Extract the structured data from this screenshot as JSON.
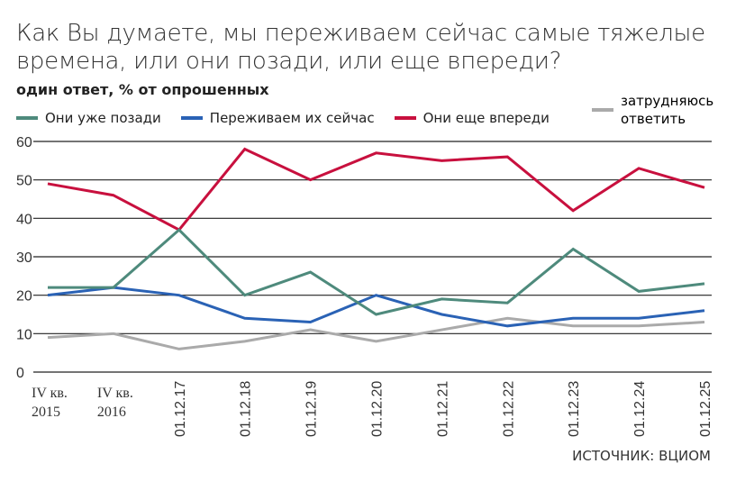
{
  "title": "Как Вы думаете, мы переживаем сейчас самые тяжелые времена, или они позади, или еще впереди?",
  "subtitle": "один ответ, % от опрошенных",
  "source": "ИСТОЧНИК: ВЦИОМ",
  "chart_data": {
    "type": "line",
    "title": "Как Вы думаете, мы переживаем сейчас самые тяжелые времена, или они позади, или еще впереди?",
    "subtitle": "один ответ, % от опрошенных",
    "categories": [
      "IV кв. 2015",
      "IV кв. 2016",
      "01.12.17",
      "01.12.18",
      "01.12.19",
      "01.12.20",
      "01.12.21",
      "01.12.22",
      "01.12.23",
      "01.12.24",
      "01.12.25"
    ],
    "ylim": [
      0,
      60
    ],
    "yticks": [
      0,
      10,
      20,
      30,
      40,
      50,
      60
    ],
    "grid": true,
    "legend": "top",
    "series": [
      {
        "name": "Они уже позади",
        "color": "#4e8a7c",
        "values": [
          22,
          22,
          37,
          20,
          26,
          15,
          19,
          18,
          32,
          21,
          23
        ]
      },
      {
        "name": "Переживаем их сейчас",
        "color": "#2a62b5",
        "values": [
          20,
          22,
          20,
          14,
          13,
          20,
          15,
          12,
          14,
          14,
          16
        ]
      },
      {
        "name": "Они еще впереди",
        "color": "#c8103e",
        "values": [
          49,
          46,
          37,
          58,
          50,
          57,
          55,
          56,
          42,
          53,
          48
        ]
      },
      {
        "name": "затрудняюсь ответить",
        "color": "#aaaaaa",
        "values": [
          9,
          10,
          6,
          8,
          11,
          8,
          11,
          14,
          12,
          12,
          13
        ]
      }
    ]
  }
}
